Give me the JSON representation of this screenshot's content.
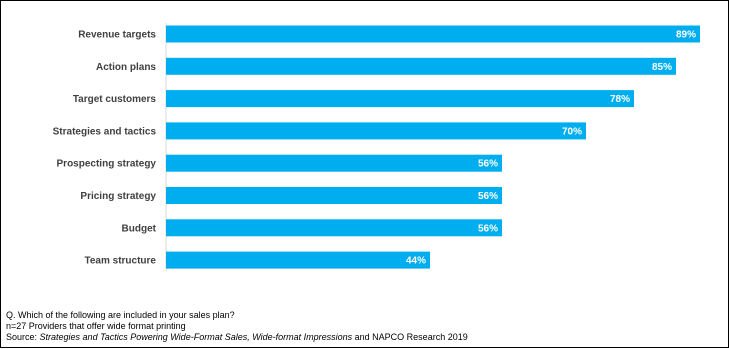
{
  "chart_data": {
    "type": "bar",
    "orientation": "horizontal",
    "categories": [
      "Revenue targets",
      "Action plans",
      "Target customers",
      "Strategies and tactics",
      "Prospecting strategy",
      "Pricing strategy",
      "Budget",
      "Team structure"
    ],
    "values": [
      89,
      85,
      78,
      70,
      56,
      56,
      56,
      44
    ],
    "value_labels": [
      "89%",
      "85%",
      "78%",
      "70%",
      "56%",
      "56%",
      "56%",
      "44%"
    ],
    "xlim": [
      0,
      90
    ],
    "grid": false,
    "bar_color": "#00aeef"
  },
  "footnotes": {
    "question": "Q. Which of the following are included in your sales plan?",
    "sample": "n=27 Providers that offer wide format printing",
    "source_prefix": "Source: ",
    "source_title": "Strategies and Tactics Powering Wide-Format Sales, Wide-format Impressions",
    "source_suffix": " and NAPCO Research 2019"
  }
}
